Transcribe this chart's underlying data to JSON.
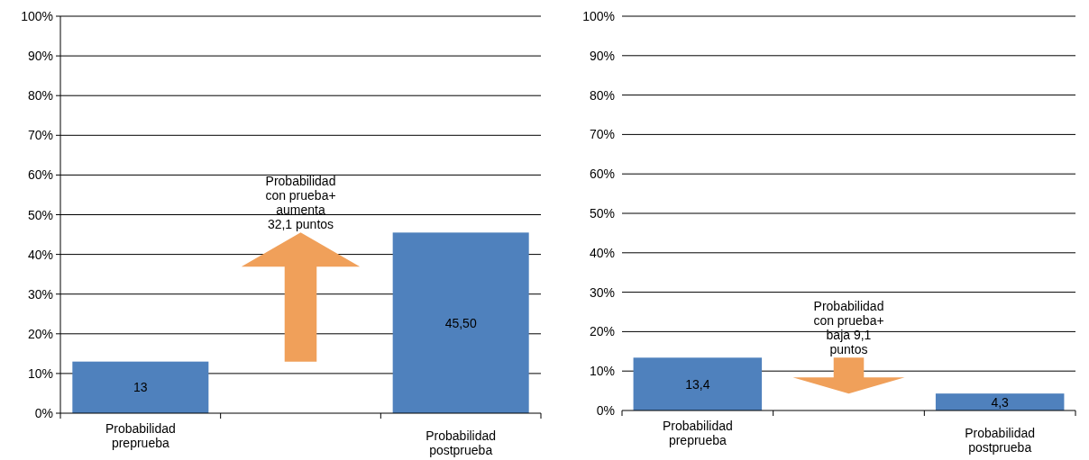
{
  "chart_data": [
    {
      "type": "bar",
      "categories": [
        "Probabilidad\npreprueba",
        null,
        "Probabilidad\npostprueba"
      ],
      "values": [
        13,
        null,
        45.5
      ],
      "value_labels": [
        "13",
        null,
        "45,50"
      ],
      "color": "#4f81bd",
      "ylim": [
        0,
        100
      ],
      "yticks": [
        {
          "value": 0,
          "label": "0%"
        },
        {
          "value": 10,
          "label": "10%"
        },
        {
          "value": 20,
          "label": "20%"
        },
        {
          "value": 30,
          "label": "30%"
        },
        {
          "value": 40,
          "label": "40%"
        },
        {
          "value": 50,
          "label": "50%"
        },
        {
          "value": 60,
          "label": "60%"
        },
        {
          "value": 70,
          "label": "70%"
        },
        {
          "value": 80,
          "label": "80%"
        },
        {
          "value": 90,
          "label": "90%"
        },
        {
          "value": 100,
          "label": "100%"
        }
      ],
      "grid": "y",
      "annotations": [
        "Probabilidad\ncon prueba+\naumenta\n32,1 puntos"
      ]
    },
    {
      "type": "bar",
      "categories": [
        "Probabilidad\npreprueba",
        null,
        "Probabilidad\npostprueba"
      ],
      "values": [
        13.4,
        null,
        4.3
      ],
      "value_labels": [
        "13,4",
        null,
        "4,3"
      ],
      "color": "#4f81bd",
      "ylim": [
        0,
        100
      ],
      "yticks": [
        {
          "value": 0,
          "label": "0%"
        },
        {
          "value": 10,
          "label": "10%"
        },
        {
          "value": 20,
          "label": "20%"
        },
        {
          "value": 30,
          "label": "30%"
        },
        {
          "value": 40,
          "label": "40%"
        },
        {
          "value": 50,
          "label": "50%"
        },
        {
          "value": 60,
          "label": "60%"
        },
        {
          "value": 70,
          "label": "70%"
        },
        {
          "value": 80,
          "label": "80%"
        },
        {
          "value": 90,
          "label": "90%"
        },
        {
          "value": 100,
          "label": "100%"
        }
      ],
      "grid": "y",
      "annotations": [
        "Probabilidad\ncon prueba+\nbaja 9,1\npuntos"
      ]
    }
  ]
}
